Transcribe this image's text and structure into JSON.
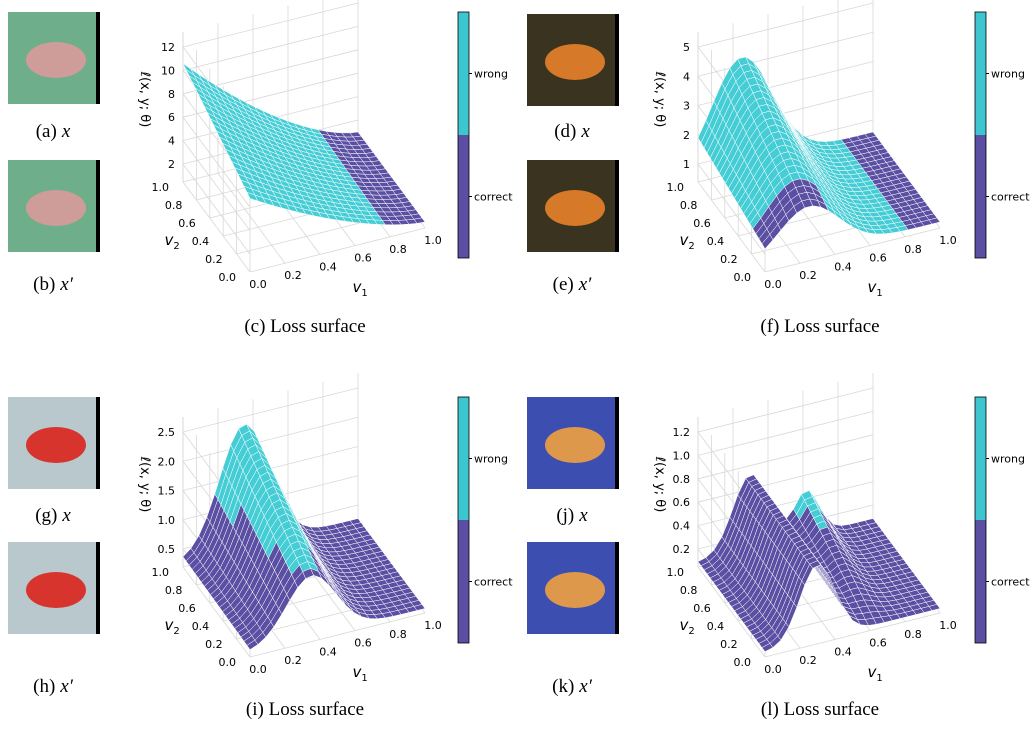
{
  "figure": {
    "panels": [
      {
        "image_captions": [
          {
            "label": "(a)",
            "var": "x"
          },
          {
            "label": "(b)",
            "var": "x′"
          }
        ],
        "plot": {
          "caption": "(c) Loss surface",
          "z_label": "ℓ(x, y; θ)",
          "x_label": {
            "base": "v",
            "sub": "1"
          },
          "y_label": {
            "base": "v",
            "sub": "2"
          },
          "z_ticks": [
            "2",
            "4",
            "6",
            "8",
            "10",
            "12"
          ],
          "x_ticks": [
            "0.0",
            "0.2",
            "0.4",
            "0.6",
            "0.8",
            "1.0"
          ],
          "y_ticks": [
            "0.0",
            "0.2",
            "0.4",
            "0.6",
            "0.8",
            "1.0"
          ],
          "colorbar": [
            "wrong",
            "correct"
          ]
        }
      },
      {
        "image_captions": [
          {
            "label": "(d)",
            "var": "x"
          },
          {
            "label": "(e)",
            "var": "x′"
          }
        ],
        "plot": {
          "caption": "(f) Loss surface",
          "z_label": "ℓ(x, y; θ)",
          "x_label": {
            "base": "v",
            "sub": "1"
          },
          "y_label": {
            "base": "v",
            "sub": "2"
          },
          "z_ticks": [
            "1",
            "2",
            "3",
            "4",
            "5"
          ],
          "x_ticks": [
            "0.0",
            "0.2",
            "0.4",
            "0.6",
            "0.8",
            "1.0"
          ],
          "y_ticks": [
            "0.0",
            "0.2",
            "0.4",
            "0.6",
            "0.8",
            "1.0"
          ],
          "colorbar": [
            "wrong",
            "correct"
          ]
        }
      },
      {
        "image_captions": [
          {
            "label": "(g)",
            "var": "x"
          },
          {
            "label": "(h)",
            "var": "x′"
          }
        ],
        "plot": {
          "caption": "(i) Loss surface",
          "z_label": "ℓ(x, y; θ)",
          "x_label": {
            "base": "v",
            "sub": "1"
          },
          "y_label": {
            "base": "v",
            "sub": "2"
          },
          "z_ticks": [
            "0.5",
            "1.0",
            "1.5",
            "2.0",
            "2.5"
          ],
          "x_ticks": [
            "0.0",
            "0.2",
            "0.4",
            "0.6",
            "0.8",
            "1.0"
          ],
          "y_ticks": [
            "0.0",
            "0.2",
            "0.4",
            "0.6",
            "0.8",
            "1.0"
          ],
          "colorbar": [
            "wrong",
            "correct"
          ]
        }
      },
      {
        "image_captions": [
          {
            "label": "(j)",
            "var": "x"
          },
          {
            "label": "(k)",
            "var": "x′"
          }
        ],
        "plot": {
          "caption": "(l) Loss surface",
          "z_label": "ℓ(x, y; θ)",
          "x_label": {
            "base": "v",
            "sub": "1"
          },
          "y_label": {
            "base": "v",
            "sub": "2"
          },
          "z_ticks": [
            "0.2",
            "0.4",
            "0.6",
            "0.8",
            "1.0",
            "1.2"
          ],
          "x_ticks": [
            "0.0",
            "0.2",
            "0.4",
            "0.6",
            "0.8",
            "1.0"
          ],
          "y_ticks": [
            "0.0",
            "0.2",
            "0.4",
            "0.6",
            "0.8",
            "1.0"
          ],
          "colorbar": [
            "wrong",
            "correct"
          ]
        }
      }
    ]
  }
}
